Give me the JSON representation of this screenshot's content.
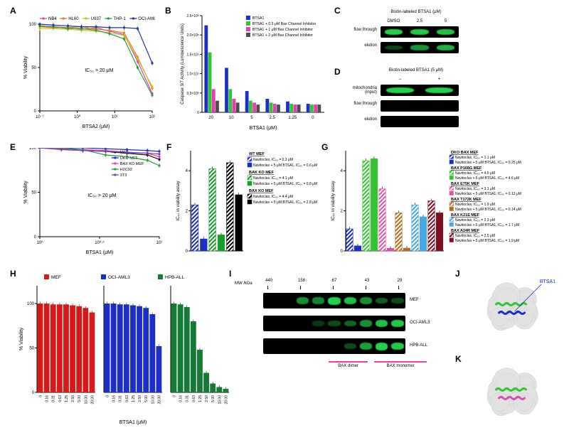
{
  "labels": {
    "A": "A",
    "B": "B",
    "C": "C",
    "D": "D",
    "E": "E",
    "F": "F",
    "G": "G",
    "H": "H",
    "I": "I",
    "J": "J",
    "K": "K"
  },
  "A": {
    "type": "line",
    "ylabel": "% Viability",
    "xlabel": "BTSA2 (μM)",
    "ylim": [
      0,
      100
    ],
    "ytick_step": 50,
    "xticks": [
      "10⁻¹",
      "10⁰",
      "10¹",
      "10²"
    ],
    "xscale": "log",
    "annotation": "IC₅₀ > 20 μM",
    "legend": [
      {
        "label": "NB4",
        "color": "#d63fb1"
      },
      {
        "label": "HL60",
        "color": "#ee7a29"
      },
      {
        "label": "U937",
        "color": "#c4c426"
      },
      {
        "label": "THP-1",
        "color": "#2a9c3d"
      },
      {
        "label": "OCI-AML3",
        "color": "#263695"
      }
    ],
    "x": [
      0,
      0.12,
      0.25,
      0.37,
      0.5,
      0.62,
      0.75,
      0.87,
      1
    ],
    "series": {
      "NB4": [
        98,
        97,
        96,
        94,
        96,
        92,
        88,
        57,
        20
      ],
      "HL60": [
        97,
        96,
        96,
        97,
        94,
        93,
        90,
        62,
        26
      ],
      "U937": [
        95,
        95,
        94,
        93,
        92,
        90,
        87,
        60,
        28
      ],
      "THP-1": [
        98,
        97,
        95,
        95,
        93,
        89,
        83,
        50,
        18
      ],
      "OCI-AML3": [
        100,
        99,
        98,
        97,
        97,
        96,
        96,
        95,
        55
      ]
    },
    "title_fontsize": 6,
    "label_fontsize": 7,
    "axis_color": "#000000",
    "marker": "circle",
    "marker_size": 2
  },
  "B": {
    "type": "bar-grouped",
    "ylabel": "Caspase 3/7 Activity (Luminescence Units)",
    "xlabel": "BTSA1 (μM)",
    "ylim": [
      0,
      2.5
    ],
    "yticks": [
      "0",
      "0.5×10⁵",
      "1.0×10⁵",
      "1.5×10⁵",
      "2.0×10⁵",
      "2.5×10⁵"
    ],
    "categories": [
      "20",
      "10",
      "5",
      "2.5",
      "1.25",
      "0"
    ],
    "legend": [
      {
        "label": "BTSA1",
        "color": "#1b2ec5"
      },
      {
        "label": "BTSA1 + 0.5 μM Bax Channel Inhibitor",
        "color": "#34c533"
      },
      {
        "label": "BTSA1 + 1 μM Bax Channel Inhibitor",
        "color": "#e63fb4"
      },
      {
        "label": "BTSA1 + 2 μM Bax Channel Inhibitor",
        "color": "#4d4d4d"
      }
    ],
    "values": {
      "20": [
        2.25,
        1.55,
        0.6,
        0.3
      ],
      "10": [
        1.15,
        0.6,
        0.35,
        0.25
      ],
      "5": [
        0.55,
        0.3,
        0.25,
        0.2
      ],
      "2.5": [
        0.35,
        0.25,
        0.22,
        0.2
      ],
      "1.25": [
        0.28,
        0.22,
        0.2,
        0.2
      ],
      "0": [
        0.22,
        0.2,
        0.2,
        0.2
      ]
    },
    "bar_colors": [
      "#1b2ec5",
      "#34c533",
      "#e63fb4",
      "#4d4d4d"
    ],
    "label_fontsize": 6
  },
  "C": {
    "title": "Biotin-labeled BTSA1 (μM)",
    "columns": [
      "DMSO",
      "2.5",
      "5"
    ],
    "rows": [
      "flow through",
      "elution"
    ],
    "band_color": "#23d04b",
    "bg": "#000000",
    "intensity": {
      "flow through": [
        1.0,
        0.95,
        0.9
      ],
      "elution": [
        0.1,
        0.6,
        0.8
      ]
    }
  },
  "D": {
    "title": "Biotin-labeled BTSA1 (5 μM)",
    "columns": [
      "–",
      "+"
    ],
    "rows": [
      "mitochondria (input)",
      "flow through",
      "elution"
    ],
    "band_color": "#23d04b",
    "bg": "#000000",
    "intensity": {
      "mitochondria (input)": [
        1.0,
        1.0
      ],
      "flow through": [
        0,
        0
      ],
      "elution": [
        0,
        0
      ]
    }
  },
  "E": {
    "type": "line",
    "ylabel": "% Viability",
    "xlabel": "BTSA1 (μM)",
    "ylim": [
      0,
      100
    ],
    "ytick_step": 50,
    "xticks": [
      "10⁰",
      "10⁰·⁵",
      "10¹"
    ],
    "xscale": "log",
    "annotation": "IC₅₀ > 20 μM",
    "legend": [
      {
        "label": "MEF",
        "color": "#000000"
      },
      {
        "label": "DKO MEF",
        "color": "#1b2ec5"
      },
      {
        "label": "BAX KO MEF",
        "color": "#e63fb4"
      },
      {
        "label": "H2C92",
        "color": "#2a9c3d"
      },
      {
        "label": "3T3",
        "color": "#7a3fb0"
      }
    ],
    "x": [
      0,
      0.18,
      0.36,
      0.55,
      0.73,
      0.9,
      1
    ],
    "series": {
      "MEF": [
        100,
        99,
        97,
        96,
        94,
        92,
        87
      ],
      "DKO MEF": [
        101,
        100,
        100,
        99,
        98,
        97,
        96
      ],
      "BAX KO MEF": [
        100,
        99,
        98,
        97,
        95,
        94,
        90
      ],
      "H2C92": [
        100,
        100,
        98,
        92,
        90,
        86,
        80
      ],
      "3T3": [
        100,
        98,
        97,
        96,
        95,
        94,
        93
      ]
    }
  },
  "F": {
    "type": "bar",
    "ylabel": "IC₅₀ in viability assay",
    "ylim": [
      0,
      5
    ],
    "ytick_step": 2,
    "colors": {
      "WT1": "#1b2ec5",
      "WT2": "#1b2ec5",
      "BAK1": "#199c2b",
      "BAK2": "#199c2b",
      "BAX1": "#000000",
      "BAX2": "#000000"
    },
    "hatch_first": true,
    "entries": [
      {
        "key": "WT1",
        "value": 2.3,
        "hatched": true
      },
      {
        "key": "WT2",
        "value": 0.6,
        "hatched": false
      },
      {
        "key": "BAK1",
        "value": 4.1,
        "hatched": true
      },
      {
        "key": "BAK2",
        "value": 0.8,
        "hatched": false
      },
      {
        "key": "BAX1",
        "value": 4.4,
        "hatched": true
      },
      {
        "key": "BAX2",
        "value": 2.8,
        "hatched": false
      }
    ],
    "legend": [
      {
        "header": "WT MEF",
        "lines": [
          "Navitoclax, IC₅₀ = 2.3 μM",
          "Navitoclax + 5 μM BTSA1, IC₅₀ = 0.6 μM"
        ]
      },
      {
        "header": "BAK KO MEF",
        "lines": [
          "Navitoclax, IC₅₀ = 4.1 μM",
          "Navitoclax + 5 μM BTSA1, IC₅₀ = 0.8 μM"
        ]
      },
      {
        "header": "BAX KO MEF",
        "lines": [
          "Navitoclax, IC₅₀ = 4.4 μM",
          "Navitoclax + 5 μM BTSA1, IC₅₀ = 2.8 μM"
        ]
      }
    ]
  },
  "G": {
    "type": "bar",
    "ylabel": "IC₅₀ in viability assay",
    "ylim": [
      0,
      5
    ],
    "ytick_step": 2,
    "pairs": [
      {
        "color": "#1b2ec5",
        "v": [
          1.1,
          0.25
        ],
        "header": "DKO BAX MEF"
      },
      {
        "color": "#34c533",
        "v": [
          4.5,
          4.6
        ],
        "header": "BAX P168G MEF"
      },
      {
        "color": "#e152a7",
        "v": [
          3.1,
          0.13
        ],
        "header": "BAX E75K MEF"
      },
      {
        "color": "#b86a1f",
        "v": [
          1.9,
          0.14
        ],
        "header": "BAX T172K MEF"
      },
      {
        "color": "#4aa6e0",
        "v": [
          2.3,
          1.7
        ],
        "header": "BAX K21E MEF"
      },
      {
        "color": "#7a1020",
        "v": [
          2.5,
          1.9
        ],
        "header": "BAX A24R MEF"
      }
    ],
    "legend_lines": [
      {
        "header": "DKO BAX MEF",
        "l1": "Navitoclax, IC₅₀ = 1.1 μM",
        "l2": "Navitoclax + 5 μM BTSA1, IC₅₀ = 0.25 μM"
      },
      {
        "header": "BAX P168G MEF",
        "l1": "Navitoclax, IC₅₀ = 4.5 μM",
        "l2": "Navitoclax + 5 μM BTSA1, IC₅₀ = 4.6 μM"
      },
      {
        "header": "BAX E75K MEF",
        "l1": "Navitoclax, IC₅₀ = 3.1 μM",
        "l2": "Navitoclax + 5 μM BTSA1, IC₅₀ = 0.13 μM"
      },
      {
        "header": "BAX T172K MEF",
        "l1": "Navitoclax, IC₅₀ = 1.9 μM",
        "l2": "Navitoclax + 5 μM BTSA1, IC₅₀ = 0.14 μM"
      },
      {
        "header": "BAX K21E MEF",
        "l1": "Navitoclax, IC₅₀ = 2.3 μM",
        "l2": "Navitoclax + 5 μM BTSA1, IC₅₀ = 1.7 μM"
      },
      {
        "header": "BAX A24R MEF",
        "l1": "Navitoclax, IC₅₀ = 2.5 μM",
        "l2": "Navitoclax + 5 μM BTSA1, IC₅₀ = 1.9 μM"
      }
    ]
  },
  "H": {
    "type": "bar-grouped",
    "ylabel": "% Viability",
    "xlabel": "BTSA1 (μM)",
    "ylim": [
      0,
      120
    ],
    "ytick_step": 50,
    "categories": [
      "0",
      "0.16",
      "0.31",
      "0.63",
      "1.25",
      "2.50",
      "5.00",
      "10.00",
      "20.00"
    ],
    "series": [
      {
        "label": "MEF",
        "color": "#d61a1a",
        "values": [
          100,
          100,
          99,
          99,
          99,
          98,
          97,
          95,
          90
        ]
      },
      {
        "label": "OCI-AML3",
        "color": "#1b2ec5",
        "values": [
          100,
          100,
          99,
          99,
          98,
          97,
          95,
          88,
          52
        ]
      },
      {
        "label": "HPB-ALL",
        "color": "#157a36",
        "values": [
          100,
          99,
          96,
          80,
          48,
          22,
          10,
          6,
          4
        ]
      }
    ]
  },
  "I": {
    "mw_label": "MW /kDa",
    "mw_ticks": [
      "440",
      "158",
      "67",
      "43",
      "29"
    ],
    "rows": [
      "MEF",
      "OCI-AML3",
      "HPB-ALL"
    ],
    "underbars": [
      {
        "label": "BAX dimer",
        "color": "#e63fb4",
        "from": 2,
        "to": 3.2
      },
      {
        "label": "BAX monomer",
        "color": "#e63fb4",
        "from": 3.4,
        "to": 5
      }
    ],
    "band_color": "#23d04b",
    "bg": "#000000",
    "bands": {
      "MEF": [
        0,
        0,
        0.6,
        0.55,
        1.0,
        0.9,
        0.6,
        0.3,
        0.2
      ],
      "OCI-AML3": [
        0,
        0,
        0,
        0.1,
        0.2,
        0.35,
        0.6,
        0.9,
        0.95
      ],
      "HPB-ALL": [
        0,
        0,
        0,
        0,
        0,
        0.2,
        0.7,
        1.0,
        0.95
      ]
    }
  },
  "J": {
    "label": "BTSA1",
    "label_color": "#1b2ec5",
    "helix_colors": [
      "#34c533",
      "#1b2ec5"
    ],
    "surface": "#e0e0e0"
  },
  "K": {
    "helix_colors": [
      "#34c533",
      "#d94fb8"
    ],
    "surface": "#e0e0e0"
  }
}
